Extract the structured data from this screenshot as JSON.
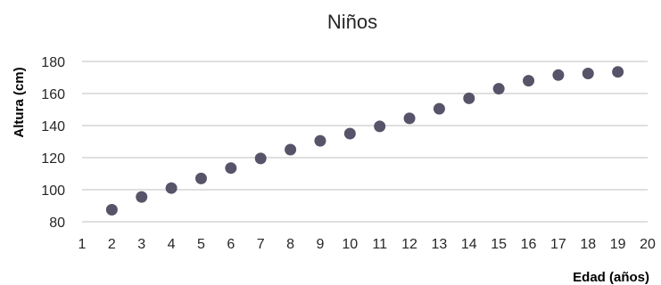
{
  "chart_data": {
    "type": "scatter",
    "title": "Niños",
    "xlabel": "Edad (años)",
    "ylabel": "Altura (cm)",
    "xlim": [
      1,
      20
    ],
    "ylim": [
      80,
      180
    ],
    "x_ticks": [
      "1",
      "2",
      "3",
      "4",
      "5",
      "6",
      "7",
      "8",
      "9",
      "10",
      "11",
      "12",
      "13",
      "14",
      "15",
      "16",
      "17",
      "18",
      "19",
      "20"
    ],
    "y_ticks": [
      "80",
      "100",
      "120",
      "140",
      "160",
      "180"
    ],
    "y_tick_values": [
      80,
      100,
      120,
      140,
      160,
      180
    ],
    "grid": "horizontal",
    "marker_color": "#57546a",
    "series": [
      {
        "x": [
          2,
          3,
          4,
          5,
          6,
          7,
          8,
          9,
          10,
          11,
          12,
          13,
          14,
          15,
          16,
          17,
          18,
          19
        ],
        "y": [
          87.5,
          95.5,
          101,
          107,
          113.5,
          119.5,
          125,
          130.5,
          135,
          139.5,
          144.5,
          150.5,
          157,
          163,
          168,
          171.5,
          172.5,
          173.5
        ]
      }
    ]
  }
}
